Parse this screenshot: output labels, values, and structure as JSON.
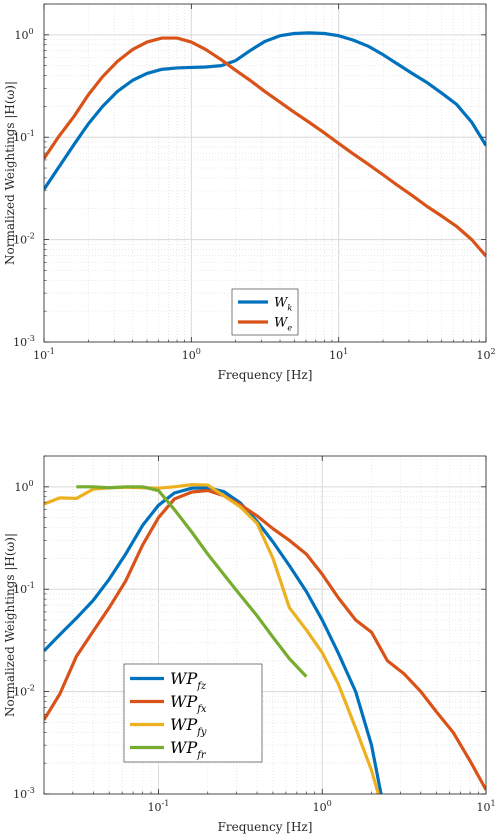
{
  "chart_data": [
    {
      "type": "line",
      "xscale": "log",
      "yscale": "log",
      "xlim": [
        0.1,
        100
      ],
      "ylim": [
        0.001,
        2
      ],
      "xticks": [
        0.1,
        1,
        10,
        100
      ],
      "xtick_labels": [
        "10^-1",
        "10^0",
        "10^1",
        "10^2"
      ],
      "yticks": [
        0.001,
        0.01,
        0.1,
        1
      ],
      "ytick_labels": [
        "10^-3",
        "10^-2",
        "10^-1",
        "10^0"
      ],
      "xlabel": "Frequency [Hz]",
      "ylabel": "Normalized Weightings |H(ω)|",
      "grid": true,
      "legend": {
        "placement": "bottom-center",
        "font_size": 13
      },
      "series": [
        {
          "name": "Wk",
          "base": "W",
          "sub": "k",
          "color": "#0072BD",
          "points": [
            [
              0.1,
              0.031
            ],
            [
              0.125,
              0.05
            ],
            [
              0.16,
              0.085
            ],
            [
              0.2,
              0.135
            ],
            [
              0.25,
              0.2
            ],
            [
              0.315,
              0.28
            ],
            [
              0.4,
              0.36
            ],
            [
              0.5,
              0.42
            ],
            [
              0.63,
              0.46
            ],
            [
              0.8,
              0.475
            ],
            [
              1.0,
              0.48
            ],
            [
              1.25,
              0.485
            ],
            [
              1.6,
              0.5
            ],
            [
              2.0,
              0.56
            ],
            [
              2.5,
              0.7
            ],
            [
              3.15,
              0.86
            ],
            [
              4.0,
              0.98
            ],
            [
              5.0,
              1.03
            ],
            [
              6.3,
              1.045
            ],
            [
              8.0,
              1.03
            ],
            [
              10,
              0.98
            ],
            [
              12.5,
              0.89
            ],
            [
              16,
              0.77
            ],
            [
              20,
              0.64
            ],
            [
              25,
              0.52
            ],
            [
              31.5,
              0.42
            ],
            [
              40,
              0.34
            ],
            [
              50,
              0.27
            ],
            [
              63,
              0.21
            ],
            [
              80,
              0.14
            ],
            [
              100,
              0.083
            ]
          ]
        },
        {
          "name": "We",
          "base": "W",
          "sub": "e",
          "color": "#D95319",
          "points": [
            [
              0.1,
              0.062
            ],
            [
              0.125,
              0.1
            ],
            [
              0.16,
              0.16
            ],
            [
              0.2,
              0.26
            ],
            [
              0.25,
              0.39
            ],
            [
              0.315,
              0.55
            ],
            [
              0.4,
              0.72
            ],
            [
              0.5,
              0.85
            ],
            [
              0.63,
              0.93
            ],
            [
              0.8,
              0.93
            ],
            [
              1.0,
              0.85
            ],
            [
              1.25,
              0.72
            ],
            [
              1.6,
              0.57
            ],
            [
              2.0,
              0.45
            ],
            [
              2.5,
              0.36
            ],
            [
              3.15,
              0.28
            ],
            [
              4.0,
              0.22
            ],
            [
              5.0,
              0.175
            ],
            [
              6.3,
              0.14
            ],
            [
              8.0,
              0.11
            ],
            [
              10,
              0.087
            ],
            [
              12.5,
              0.069
            ],
            [
              16,
              0.054
            ],
            [
              20,
              0.043
            ],
            [
              25,
              0.034
            ],
            [
              31.5,
              0.027
            ],
            [
              40,
              0.021
            ],
            [
              50,
              0.017
            ],
            [
              63,
              0.0135
            ],
            [
              80,
              0.01
            ],
            [
              100,
              0.0069
            ]
          ]
        }
      ]
    },
    {
      "type": "line",
      "xscale": "log",
      "yscale": "log",
      "xlim": [
        0.02,
        10
      ],
      "ylim": [
        0.001,
        2
      ],
      "xticks": [
        0.1,
        1,
        10
      ],
      "xtick_labels": [
        "10^-1",
        "10^0",
        "10^1"
      ],
      "yticks": [
        0.001,
        0.01,
        0.1,
        1
      ],
      "ytick_labels": [
        "10^-3",
        "10^-2",
        "10^-1",
        "10^0"
      ],
      "xlabel": "Frequency [Hz]",
      "ylabel": "Normalized Weightings |H(ω)|",
      "grid": true,
      "legend": {
        "placement": "bottom-left",
        "font_size": 16
      },
      "series": [
        {
          "name": "WPfz",
          "base": "WP",
          "sub": "fz",
          "color": "#0072BD",
          "points": [
            [
              0.02,
              0.025
            ],
            [
              0.025,
              0.036
            ],
            [
              0.0315,
              0.052
            ],
            [
              0.04,
              0.078
            ],
            [
              0.05,
              0.125
            ],
            [
              0.063,
              0.22
            ],
            [
              0.08,
              0.42
            ],
            [
              0.1,
              0.66
            ],
            [
              0.125,
              0.87
            ],
            [
              0.16,
              0.97
            ],
            [
              0.2,
              0.98
            ],
            [
              0.25,
              0.9
            ],
            [
              0.315,
              0.7
            ],
            [
              0.4,
              0.46
            ],
            [
              0.5,
              0.29
            ],
            [
              0.63,
              0.17
            ],
            [
              0.8,
              0.095
            ],
            [
              1.0,
              0.05
            ],
            [
              1.25,
              0.024
            ],
            [
              1.6,
              0.01
            ],
            [
              2.0,
              0.003
            ],
            [
              2.3,
              0.00095
            ]
          ]
        },
        {
          "name": "WPfx",
          "base": "WP",
          "sub": "fx",
          "color": "#D95319",
          "points": [
            [
              0.02,
              0.0053
            ],
            [
              0.025,
              0.0095
            ],
            [
              0.0315,
              0.022
            ],
            [
              0.04,
              0.039
            ],
            [
              0.05,
              0.066
            ],
            [
              0.063,
              0.12
            ],
            [
              0.08,
              0.27
            ],
            [
              0.1,
              0.5
            ],
            [
              0.125,
              0.76
            ],
            [
              0.16,
              0.89
            ],
            [
              0.2,
              0.92
            ],
            [
              0.25,
              0.82
            ],
            [
              0.315,
              0.67
            ],
            [
              0.4,
              0.52
            ],
            [
              0.5,
              0.39
            ],
            [
              0.63,
              0.3
            ],
            [
              0.8,
              0.22
            ],
            [
              1.0,
              0.14
            ],
            [
              1.25,
              0.083
            ],
            [
              1.6,
              0.05
            ],
            [
              2.0,
              0.038
            ],
            [
              2.5,
              0.02
            ],
            [
              3.15,
              0.015
            ],
            [
              4.0,
              0.01
            ],
            [
              5.0,
              0.0063
            ],
            [
              6.3,
              0.004
            ],
            [
              8.0,
              0.0021
            ],
            [
              10,
              0.0011
            ]
          ]
        },
        {
          "name": "WPfy",
          "base": "WP",
          "sub": "fy",
          "color": "#EDB120",
          "points": [
            [
              0.02,
              0.68
            ],
            [
              0.025,
              0.78
            ],
            [
              0.0315,
              0.77
            ],
            [
              0.04,
              0.95
            ],
            [
              0.05,
              0.98
            ],
            [
              0.063,
              0.99
            ],
            [
              0.08,
              0.98
            ],
            [
              0.1,
              0.97
            ],
            [
              0.125,
              1.0
            ],
            [
              0.16,
              1.05
            ],
            [
              0.2,
              1.04
            ],
            [
              0.25,
              0.82
            ],
            [
              0.315,
              0.64
            ],
            [
              0.4,
              0.44
            ],
            [
              0.5,
              0.2
            ],
            [
              0.63,
              0.066
            ],
            [
              0.8,
              0.04
            ],
            [
              1.0,
              0.024
            ],
            [
              1.25,
              0.012
            ],
            [
              1.6,
              0.0044
            ],
            [
              2.0,
              0.0017
            ],
            [
              2.2,
              0.001
            ]
          ]
        },
        {
          "name": "WPfr",
          "base": "WP",
          "sub": "fr",
          "color": "#77AC30",
          "points": [
            [
              0.0315,
              1.0
            ],
            [
              0.04,
              1.0
            ],
            [
              0.05,
              0.98
            ],
            [
              0.063,
              1.0
            ],
            [
              0.08,
              1.0
            ],
            [
              0.1,
              0.92
            ],
            [
              0.125,
              0.6
            ],
            [
              0.16,
              0.36
            ],
            [
              0.2,
              0.22
            ],
            [
              0.25,
              0.14
            ],
            [
              0.315,
              0.088
            ],
            [
              0.4,
              0.055
            ],
            [
              0.5,
              0.034
            ],
            [
              0.63,
              0.021
            ],
            [
              0.8,
              0.014
            ]
          ]
        }
      ]
    }
  ]
}
